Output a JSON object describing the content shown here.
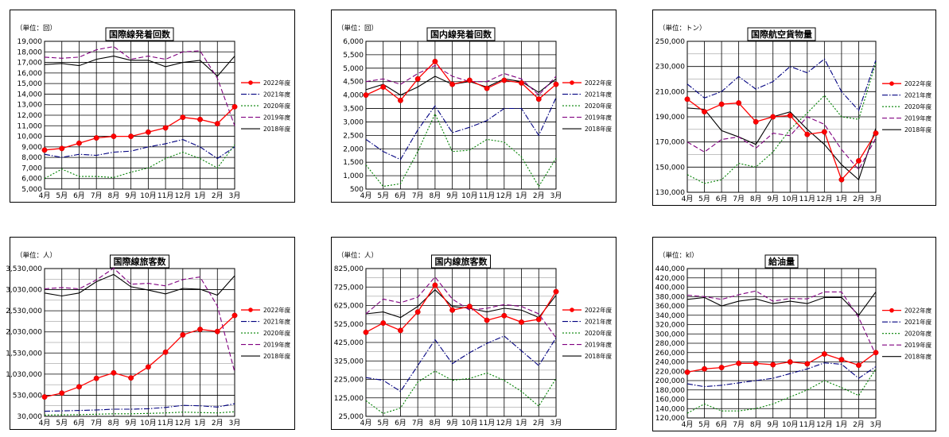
{
  "legend_entries": [
    "2022年度",
    "2021年度",
    "2020年度",
    "2019年度",
    "2018年度"
  ],
  "series_colors": [
    "#ff0000",
    "#000080",
    "#008000",
    "#800080",
    "#000000"
  ],
  "chart_data": [
    {
      "type": "line",
      "title": "国際線発着回数",
      "unit_label": "（単位：回）",
      "categories": [
        "4月",
        "5月",
        "6月",
        "7月",
        "8月",
        "9月",
        "10月",
        "11月",
        "12月",
        "1月",
        "2月",
        "3月"
      ],
      "ylim": [
        5000,
        19000
      ],
      "yticks": [
        "5,000",
        "6,000",
        "7,000",
        "8,000",
        "9,000",
        "10,000",
        "11,000",
        "12,000",
        "13,000",
        "14,000",
        "15,000",
        "16,000",
        "17,000",
        "18,000",
        "19,000"
      ],
      "grid": true,
      "legend_position": "right",
      "series": [
        {
          "name": "2022年度",
          "values": [
            8700,
            8850,
            9350,
            9850,
            10000,
            10000,
            10400,
            10800,
            11800,
            11600,
            11200,
            12800
          ]
        },
        {
          "name": "2021年度",
          "values": [
            8300,
            8000,
            8300,
            8200,
            8500,
            8600,
            9000,
            9300,
            9700,
            9000,
            7900,
            9000
          ]
        },
        {
          "name": "2020年度",
          "values": [
            6000,
            6900,
            6200,
            6200,
            6100,
            6600,
            7000,
            7900,
            8500,
            7900,
            7000,
            9200
          ]
        },
        {
          "name": "2019年度",
          "values": [
            17500,
            17400,
            17500,
            18200,
            18500,
            17300,
            17600,
            17300,
            18000,
            18100,
            15500,
            11000
          ]
        },
        {
          "name": "2018年度",
          "values": [
            16800,
            16900,
            16700,
            17300,
            17600,
            17200,
            17200,
            16600,
            17000,
            17200,
            15700,
            17600
          ]
        }
      ]
    },
    {
      "type": "line",
      "title": "国内線発着回数",
      "unit_label": "（単位：回）",
      "categories": [
        "4月",
        "5月",
        "6月",
        "7月",
        "8月",
        "9月",
        "10月",
        "11月",
        "12月",
        "1月",
        "2月",
        "3月"
      ],
      "ylim": [
        500,
        6000
      ],
      "yticks": [
        "500",
        "1,000",
        "1,500",
        "2,000",
        "2,500",
        "3,000",
        "3,500",
        "4,000",
        "4,500",
        "5,000",
        "5,500",
        "6,000"
      ],
      "grid": true,
      "legend_position": "right",
      "series": [
        {
          "name": "2022年度",
          "values": [
            4000,
            4300,
            3800,
            4600,
            5250,
            4400,
            4550,
            4250,
            4550,
            4450,
            3850,
            4400
          ]
        },
        {
          "name": "2021年度",
          "values": [
            2350,
            1900,
            1600,
            2700,
            3600,
            2600,
            2800,
            3050,
            3500,
            3500,
            2500,
            3900
          ]
        },
        {
          "name": "2020年度",
          "values": [
            1400,
            600,
            700,
            1900,
            3300,
            1900,
            1950,
            2350,
            2250,
            1700,
            600,
            1650
          ]
        },
        {
          "name": "2019年度",
          "values": [
            4500,
            4600,
            4400,
            4800,
            5100,
            4700,
            4500,
            4500,
            4800,
            4600,
            4000,
            4700
          ]
        },
        {
          "name": "2018年度",
          "values": [
            4200,
            4400,
            4000,
            4300,
            4700,
            4400,
            4500,
            4300,
            4600,
            4500,
            4100,
            4600
          ]
        }
      ]
    },
    {
      "type": "line",
      "title": "国際航空貨物量",
      "unit_label": "（単位：トン）",
      "categories": [
        "4月",
        "5月",
        "6月",
        "7月",
        "8月",
        "9月",
        "10月",
        "11月",
        "12月",
        "1月",
        "2月",
        "3月"
      ],
      "ylim": [
        130000,
        250000
      ],
      "yticks": [
        "130,000",
        "150,000",
        "170,000",
        "190,000",
        "210,000",
        "230,000",
        "250,000"
      ],
      "grid": true,
      "legend_position": "right",
      "series": [
        {
          "name": "2022年度",
          "values": [
            204000,
            194000,
            200000,
            201000,
            186000,
            190000,
            191000,
            176000,
            178000,
            140000,
            155000,
            177000
          ]
        },
        {
          "name": "2021年度",
          "values": [
            216000,
            205000,
            210000,
            222000,
            212000,
            218000,
            230000,
            225000,
            236000,
            210000,
            195000,
            235000
          ]
        },
        {
          "name": "2020年度",
          "values": [
            144000,
            137000,
            140000,
            153000,
            150000,
            162000,
            180000,
            193000,
            207000,
            190000,
            188000,
            233000
          ]
        },
        {
          "name": "2019年度",
          "values": [
            170000,
            162000,
            172000,
            174000,
            165000,
            177000,
            175000,
            190000,
            184000,
            164000,
            148000,
            173000
          ]
        },
        {
          "name": "2018年度",
          "values": [
            197000,
            196000,
            179000,
            174000,
            168000,
            190000,
            194000,
            180000,
            168000,
            152000,
            140000,
            181000
          ]
        }
      ]
    },
    {
      "type": "line",
      "title": "国際線旅客数",
      "unit_label": "（単位：人）",
      "categories": [
        "4月",
        "5月",
        "6月",
        "7月",
        "8月",
        "9月",
        "10月",
        "11月",
        "12月",
        "1月",
        "2月",
        "3月"
      ],
      "ylim": [
        30000,
        3530000
      ],
      "yticks": [
        "30,000",
        "530,000",
        "1,030,000",
        "1,530,000",
        "2,030,000",
        "2,530,000",
        "3,030,000",
        "3,530,000"
      ],
      "grid": true,
      "legend_position": "right",
      "series": [
        {
          "name": "2022年度",
          "values": [
            490000,
            580000,
            730000,
            930000,
            1060000,
            940000,
            1200000,
            1550000,
            1960000,
            2090000,
            2040000,
            2420000
          ]
        },
        {
          "name": "2021年度",
          "values": [
            150000,
            160000,
            170000,
            180000,
            200000,
            200000,
            210000,
            240000,
            290000,
            280000,
            250000,
            330000
          ]
        },
        {
          "name": "2020年度",
          "values": [
            60000,
            65000,
            70000,
            80000,
            90000,
            90000,
            100000,
            110000,
            130000,
            120000,
            110000,
            140000
          ]
        },
        {
          "name": "2019年度",
          "values": [
            3050000,
            3080000,
            3050000,
            3260000,
            3540000,
            3160000,
            3180000,
            3120000,
            3270000,
            3330000,
            2640000,
            1080000
          ]
        },
        {
          "name": "2018年度",
          "values": [
            2950000,
            2880000,
            2950000,
            3220000,
            3390000,
            3100000,
            3020000,
            2930000,
            3060000,
            3040000,
            2900000,
            3360000
          ]
        }
      ]
    },
    {
      "type": "line",
      "title": "国内線旅客数",
      "unit_label": "（単位：人）",
      "categories": [
        "4月",
        "5月",
        "6月",
        "7月",
        "8月",
        "9月",
        "10月",
        "11月",
        "12月",
        "1月",
        "2月",
        "3月"
      ],
      "ylim": [
        25000,
        825000
      ],
      "yticks": [
        "25,000",
        "125,000",
        "225,000",
        "325,000",
        "425,000",
        "525,000",
        "625,000",
        "725,000",
        "825,000"
      ],
      "grid": true,
      "legend_position": "right",
      "series": [
        {
          "name": "2022年度",
          "values": [
            480000,
            530000,
            490000,
            590000,
            735000,
            600000,
            620000,
            545000,
            570000,
            535000,
            550000,
            700000
          ]
        },
        {
          "name": "2021年度",
          "values": [
            235000,
            220000,
            160000,
            300000,
            440000,
            310000,
            370000,
            420000,
            460000,
            380000,
            300000,
            450000
          ]
        },
        {
          "name": "2020年度",
          "values": [
            110000,
            40000,
            70000,
            210000,
            270000,
            220000,
            230000,
            260000,
            220000,
            160000,
            80000,
            230000
          ]
        },
        {
          "name": "2019年度",
          "values": [
            580000,
            660000,
            640000,
            670000,
            780000,
            660000,
            600000,
            610000,
            630000,
            620000,
            580000,
            450000
          ]
        },
        {
          "name": "2018年度",
          "values": [
            580000,
            590000,
            560000,
            620000,
            710000,
            620000,
            610000,
            590000,
            610000,
            600000,
            560000,
            680000
          ]
        }
      ]
    },
    {
      "type": "line",
      "title": "給油量",
      "unit_label": "（単位：kl）",
      "categories": [
        "4月",
        "5月",
        "6月",
        "7月",
        "8月",
        "9月",
        "10月",
        "11月",
        "12月",
        "1月",
        "2月",
        "3月"
      ],
      "ylim": [
        120000,
        440000
      ],
      "yticks": [
        "120,000",
        "140,000",
        "160,000",
        "180,000",
        "200,000",
        "220,000",
        "240,000",
        "260,000",
        "280,000",
        "300,000",
        "320,000",
        "340,000",
        "360,000",
        "380,000",
        "400,000",
        "420,000",
        "440,000"
      ],
      "grid": true,
      "legend_position": "right",
      "series": [
        {
          "name": "2022年度",
          "values": [
            218000,
            225000,
            228000,
            237000,
            237000,
            234000,
            240000,
            236000,
            257000,
            245000,
            233000,
            260000
          ]
        },
        {
          "name": "2021年度",
          "values": [
            193000,
            187000,
            190000,
            195000,
            200000,
            205000,
            215000,
            225000,
            238000,
            235000,
            205000,
            230000
          ]
        },
        {
          "name": "2020年度",
          "values": [
            130000,
            150000,
            135000,
            135000,
            140000,
            150000,
            165000,
            180000,
            200000,
            185000,
            168000,
            225000
          ]
        },
        {
          "name": "2019年度",
          "values": [
            383000,
            380000,
            374000,
            384000,
            392000,
            370000,
            376000,
            375000,
            390000,
            390000,
            335000,
            255000
          ]
        },
        {
          "name": "2018年度",
          "values": [
            374000,
            378000,
            360000,
            370000,
            375000,
            365000,
            370000,
            365000,
            378000,
            378000,
            340000,
            390000
          ]
        }
      ]
    }
  ]
}
